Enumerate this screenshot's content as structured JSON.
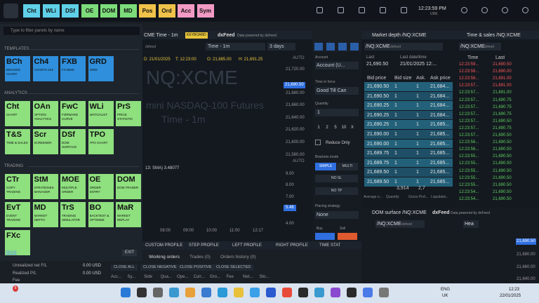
{
  "toolbar": {
    "buttons": [
      {
        "label": "Cht",
        "color": "#5fd0e8"
      },
      {
        "label": "WLi",
        "color": "#5fd0e8"
      },
      {
        "label": "DSf",
        "color": "#5fd0e8"
      },
      {
        "label": "OE",
        "color": "#7ddc7a"
      },
      {
        "label": "DOM",
        "color": "#7ddc7a"
      },
      {
        "label": "MD",
        "color": "#7ddc7a"
      },
      {
        "label": "Pos",
        "color": "#f0c24a"
      },
      {
        "label": "Ord",
        "color": "#f0c24a"
      },
      {
        "label": "Acc",
        "color": "#f29ac4"
      },
      {
        "label": "Sym",
        "color": "#f29ac4"
      }
    ],
    "clock": "12:23:59 PM",
    "timezone": "UDE"
  },
  "panel_menu": {
    "search_placeholder": "Type to filter panels by name",
    "sections": [
      {
        "title": "TEMPLATES",
        "color": "#2f8fdc",
        "tiles": [
          {
            "code": "BCh",
            "label": "BINANCE CHART"
          },
          {
            "code": "Ch4",
            "label": "CHARTS 2X2"
          },
          {
            "code": "FXB",
            "label": "FX BIND"
          },
          {
            "code": "GRD",
            "label": "GRID"
          }
        ]
      },
      {
        "title": "ANALYTICS",
        "color": "#8fe07f",
        "tiles": [
          {
            "code": "Cht",
            "label": "CHART"
          },
          {
            "code": "OAn",
            "label": "OPTION ANALYTICS"
          },
          {
            "code": "FwC",
            "label": "FORWARD CURVE"
          },
          {
            "code": "WLi",
            "label": "WATCHLIST"
          },
          {
            "code": "PrS",
            "label": "PRICE STATISTIC"
          },
          {
            "code": "T&S",
            "label": "TIME & SALES"
          },
          {
            "code": "Scr",
            "label": "SCREENER"
          },
          {
            "code": "DSf",
            "label": "DOM SURFACE"
          },
          {
            "code": "TPO",
            "label": "TPO CHART"
          }
        ]
      },
      {
        "title": "TRADING",
        "color": "#8fe07f",
        "tiles": [
          {
            "code": "CTr",
            "label": "COPY TRADING"
          },
          {
            "code": "StM",
            "label": "STRATEGIES MANAGER"
          },
          {
            "code": "MOE",
            "label": "MULTIPLE ORDER"
          },
          {
            "code": "OE",
            "label": "ORDER ENTRY"
          },
          {
            "code": "DOM",
            "label": "DOM TRADER"
          },
          {
            "code": "EvT",
            "label": "EVENT TRADING"
          },
          {
            "code": "MD",
            "label": "MARKET DEPTH"
          },
          {
            "code": "TrS",
            "label": "TRADING SIMULATOR"
          },
          {
            "code": "BO",
            "label": "BACKTEST & OPTIMIZE"
          },
          {
            "code": "MaR",
            "label": "MARKET REPLAY"
          },
          {
            "code": "FXc"
          }
        ]
      }
    ],
    "about": "About",
    "exit": "EXIT"
  },
  "chart": {
    "title": "CME Time - 1m",
    "badge": "KEYBOARD",
    "feed": "dxFeed",
    "feed_note": "Data powered by dxFeed",
    "symbol_tag": "dxfeed",
    "timeframe": "Time - 1m",
    "range": "3 days",
    "ohlc": [
      "D: 21/01/2025",
      "T: 12:23:00",
      "O: 21,685.00",
      "H: 21,691.25"
    ],
    "watermark_symbol": "NQ:XCME",
    "watermark_name": "mini NASDAQ-100 Futures",
    "watermark_period": "Time - 1m",
    "auto": "AUTO",
    "price_ticks": [
      "21,720.00",
      "21,680.00",
      "21,660.00",
      "21,640.00",
      "21,620.00",
      "21,600.00",
      "21,580.00"
    ],
    "last_price": "21,690.50",
    "indicator_label": "13: SMA) 3.48077",
    "indicator_ticks": [
      "9.00",
      "8.00",
      "7.00",
      "4.00"
    ],
    "indicator_last": "5.48",
    "time_ticks": [
      "08:00",
      "09:00",
      "10:00",
      "11:00",
      "12:17"
    ]
  },
  "chart_toolbar": [
    "CUSTOM PROFILE",
    "STEP PROFILE",
    "LEFT PROFILE",
    "RIGHT PROFILE",
    "TIME STAT"
  ],
  "order_entry": {
    "account_label": "Account",
    "account": "Account (U...",
    "tif_label": "Time in force",
    "tif": "Good Till Can",
    "quantity_label": "Quantity",
    "quantity": "1",
    "quick_qty": [
      "1",
      "2",
      "5",
      "10",
      "X"
    ],
    "reduce_only": "Reduce Only",
    "brackets_label": "Brackets mode",
    "brackets": [
      "SIMPLE",
      "MULTI"
    ],
    "sl": "NO SL",
    "tp": "NO TP",
    "placing_label": "Placing strategy",
    "placing": "None",
    "buy": "Buy",
    "sell": "Sell"
  },
  "market_depth": {
    "title": "Market depth /NQ:XCME",
    "symbol": "/NQ:XCME",
    "symbol_tag": "dxfeed",
    "last_label": "Last",
    "last": "21,690.50",
    "last_time_label": "Last date/time",
    "last_time": "21/01/2025 12:...",
    "columns": [
      "Bid price",
      "Bid size",
      "Ask.",
      "Ask price"
    ],
    "rows": [
      [
        "21,690.50",
        "1",
        "1",
        "21,684..."
      ],
      [
        "21,690.50",
        "1",
        "1",
        "21,684..."
      ],
      [
        "21,690.25",
        "1",
        "1",
        "21,684..."
      ],
      [
        "21,690.25",
        "1",
        "1",
        "21,684..."
      ],
      [
        "21,690.25",
        "1",
        "1",
        "21,685..."
      ],
      [
        "21,690.00",
        "1",
        "1",
        "21,685..."
      ],
      [
        "21,690.00",
        "1",
        "1",
        "21,685..."
      ],
      [
        "21,689.75",
        "1",
        "1",
        "21,685..."
      ],
      [
        "21,689.75",
        "1",
        "1",
        "21,685..."
      ],
      [
        "21,689.50",
        "1",
        "1",
        "21,685..."
      ],
      [
        "21,689.50",
        "1",
        "1",
        "21,685..."
      ]
    ],
    "totals": [
      "3,914",
      "2,7"
    ],
    "footer": [
      "Average o...",
      "Quantity",
      "Gross Prof...",
      "Liquidatio..."
    ]
  },
  "time_sales": {
    "title": "Time & sales /NQ:XCME",
    "symbol": "/NQ:XCME",
    "symbol_tag": "dxfeed",
    "columns": [
      "Time",
      "Last"
    ],
    "rows": [
      {
        "time": "12:23:59...",
        "last": "21,690.50",
        "color": "#ff5a5a"
      },
      {
        "time": "12:23:58...",
        "last": "21,690.00",
        "color": "#ff5a5a"
      },
      {
        "time": "12:23:58...",
        "last": "21,691.00",
        "color": "#ff5a5a"
      },
      {
        "time": "12:23:57...",
        "last": "21,691.00",
        "color": "#ff5a5a"
      },
      {
        "time": "12:23:57...",
        "last": "21,691.00",
        "color": "#5fd05f"
      },
      {
        "time": "12:23:57...",
        "last": "21,690.75",
        "color": "#5fd05f"
      },
      {
        "time": "12:23:57...",
        "last": "21,690.75",
        "color": "#5fd05f"
      },
      {
        "time": "12:23:57...",
        "last": "21,690.75",
        "color": "#5fd05f"
      },
      {
        "time": "12:23:57...",
        "last": "21,690.50",
        "color": "#5fd05f"
      },
      {
        "time": "12:23:57...",
        "last": "21,690.75",
        "color": "#5fd05f"
      },
      {
        "time": "12:23:57...",
        "last": "21,690.50",
        "color": "#5fd05f"
      },
      {
        "time": "12:23:56...",
        "last": "21,690.50",
        "color": "#5fd05f"
      },
      {
        "time": "12:23:56...",
        "last": "21,690.50",
        "color": "#5fd05f"
      },
      {
        "time": "12:23:55...",
        "last": "21,690.50",
        "color": "#5fd05f"
      },
      {
        "time": "12:23:55...",
        "last": "21,690.50",
        "color": "#5fd05f"
      },
      {
        "time": "12:23:55...",
        "last": "21,690.50",
        "color": "#5fd05f"
      },
      {
        "time": "12:23:55...",
        "last": "21,690.50",
        "color": "#5fd05f"
      },
      {
        "time": "12:23:55...",
        "last": "21,690.50",
        "color": "#5fd05f"
      },
      {
        "time": "12:23:54...",
        "last": "21,690.50",
        "color": "#5fd05f"
      },
      {
        "time": "12:23:54...",
        "last": "21,690.50",
        "color": "#5fd05f"
      }
    ]
  },
  "dom_surface": {
    "title": "DOM surface /NQ:XCME",
    "feed": "dxFeed",
    "feed_note": "Data powered by dxFeed",
    "symbol": "/NQ:XCME",
    "symbol_tag": "dxfeed",
    "tool": "Hea",
    "price_labels": [
      "21,690.50",
      "21,680.00",
      "21,660.00",
      "21,640.00"
    ]
  },
  "account_summary": {
    "unrealized_label": "Unrealized net F/L",
    "unrealized": "0.00 USD",
    "realized_label": "Realized P/L",
    "realized": "0.00 USD",
    "fee_label": "Fee"
  },
  "orders": {
    "tabs": [
      "Working orders",
      "Trades (0)",
      "Orders history (0)"
    ],
    "actions": [
      "CLOSE ALL",
      "CLOSE NEGATIVE",
      "CLOSE POSITIVE",
      "CLOSE SELECTED"
    ],
    "columns": [
      "Acc...",
      "Sy...",
      "Side",
      "Qua...",
      "Ope...",
      "Curr...",
      "Gro...",
      "Fee",
      "Net...",
      "Sto..."
    ]
  },
  "taskbar": {
    "notification_count": "5",
    "language": "ENG",
    "region": "UK",
    "time": "12:23",
    "date": "22/01/2025"
  }
}
